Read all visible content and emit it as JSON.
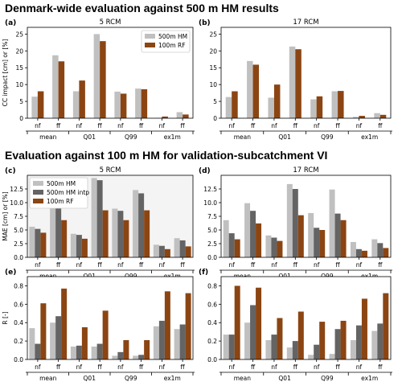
{
  "section_titles": {
    "top": "Denmark-wide evaluation against 500 m HM results",
    "bottom": "Evaluation against 100 m HM for validation-subcatchment VI"
  },
  "colors": {
    "hm500": "#c0c0c0",
    "hm500_intp": "#646464",
    "rf100": "#8b4513",
    "panel_bg_c": "#f4f4f4"
  },
  "chart_data": [
    {
      "panel": "(a)",
      "title": "5 RCM",
      "type": "bar",
      "categories": [
        "nf",
        "ff",
        "nf",
        "ff",
        "nf",
        "ff",
        "nf",
        "ff"
      ],
      "groups": [
        "mean",
        "Q01",
        "Q99",
        "ex1m"
      ],
      "ylabel": "CC impact [cm] or [%]",
      "ylim": [
        0,
        27
      ],
      "yticks": [
        0,
        5,
        10,
        15,
        20,
        25
      ],
      "legend": "top-right",
      "series": [
        {
          "name": "500m HM",
          "color": "#c0c0c0",
          "values": [
            6.4,
            18.7,
            8.0,
            25.0,
            7.9,
            8.8,
            0.1,
            1.8
          ]
        },
        {
          "name": "100m RF",
          "color": "#8b4513",
          "values": [
            8.0,
            16.9,
            11.2,
            22.9,
            7.3,
            8.6,
            0.5,
            1.1
          ]
        }
      ]
    },
    {
      "panel": "(b)",
      "title": "17 RCM",
      "type": "bar",
      "categories": [
        "nf",
        "ff",
        "nf",
        "ff",
        "nf",
        "ff",
        "nf",
        "ff"
      ],
      "groups": [
        "mean",
        "Q01",
        "Q99",
        "ex1m"
      ],
      "ylim": [
        0,
        27
      ],
      "yticks": [
        0,
        5,
        10,
        15,
        20,
        25
      ],
      "series": [
        {
          "name": "500m HM",
          "values": [
            6.3,
            17.0,
            6.1,
            21.3,
            5.6,
            8.0,
            0.4,
            1.5
          ]
        },
        {
          "name": "100m RF",
          "values": [
            8.0,
            15.9,
            10.0,
            20.5,
            6.5,
            8.1,
            0.7,
            1.0
          ]
        }
      ]
    },
    {
      "panel": "(c)",
      "title": "5 RCM",
      "type": "bar",
      "categories": [
        "nf",
        "ff",
        "nf",
        "ff",
        "nf",
        "ff",
        "nf",
        "ff"
      ],
      "groups": [
        "mean",
        "Q01",
        "Q99",
        "ex1m"
      ],
      "ylabel": "MAE [cm] or [%]",
      "ylim": [
        0,
        15
      ],
      "yticks": [
        0.0,
        2.5,
        5.0,
        7.5,
        10.0,
        12.5
      ],
      "legend": "top-left",
      "series": [
        {
          "name": "500m HM",
          "color": "#c0c0c0",
          "values": [
            5.6,
            9.9,
            4.3,
            14.5,
            8.9,
            12.3,
            2.3,
            3.5
          ]
        },
        {
          "name": "500m HM intp",
          "color": "#646464",
          "values": [
            5.2,
            9.9,
            4.1,
            14.1,
            8.5,
            11.7,
            2.1,
            3.1
          ]
        },
        {
          "name": "100m RF",
          "color": "#8b4513",
          "values": [
            4.5,
            6.8,
            3.4,
            8.6,
            6.8,
            8.6,
            1.5,
            2.0
          ]
        }
      ]
    },
    {
      "panel": "(d)",
      "title": "17 RCM",
      "type": "bar",
      "categories": [
        "nf",
        "ff",
        "nf",
        "ff",
        "nf",
        "ff",
        "nf",
        "ff"
      ],
      "groups": [
        "mean",
        "Q01",
        "Q99",
        "ex1m"
      ],
      "ylim": [
        0,
        15
      ],
      "yticks": [
        0.0,
        2.5,
        5.0,
        7.5,
        10.0,
        12.5
      ],
      "series": [
        {
          "name": "500m HM",
          "values": [
            6.8,
            9.9,
            4.0,
            13.4,
            8.1,
            12.4,
            2.8,
            3.3
          ]
        },
        {
          "name": "500m HM intp",
          "values": [
            4.4,
            8.5,
            3.6,
            12.5,
            5.4,
            8.0,
            1.5,
            2.6
          ]
        },
        {
          "name": "100m RF",
          "values": [
            3.3,
            6.2,
            3.0,
            7.7,
            5.0,
            6.8,
            1.2,
            1.7
          ]
        }
      ]
    },
    {
      "panel": "(e)",
      "type": "bar",
      "categories": [
        "nf",
        "ff",
        "nf",
        "ff",
        "nf",
        "ff",
        "nf",
        "ff"
      ],
      "groups": [
        "mean",
        "Q01",
        "Q99",
        "ex1m"
      ],
      "ylabel": "R [-]",
      "ylim": [
        0,
        0.9
      ],
      "yticks": [
        0.0,
        0.2,
        0.4,
        0.6,
        0.8
      ],
      "series": [
        {
          "name": "500m HM",
          "values": [
            0.34,
            0.4,
            0.14,
            0.14,
            0.04,
            0.04,
            0.36,
            0.33
          ]
        },
        {
          "name": "500m HM intp",
          "values": [
            0.17,
            0.47,
            0.15,
            0.17,
            0.08,
            0.05,
            0.42,
            0.38
          ]
        },
        {
          "name": "100m RF",
          "values": [
            0.61,
            0.77,
            0.35,
            0.53,
            0.21,
            0.21,
            0.74,
            0.72
          ]
        }
      ]
    },
    {
      "panel": "(f)",
      "type": "bar",
      "categories": [
        "nf",
        "ff",
        "nf",
        "ff",
        "nf",
        "ff",
        "nf",
        "ff"
      ],
      "groups": [
        "mean",
        "Q01",
        "Q99",
        "ex1m"
      ],
      "ylim": [
        0,
        0.9
      ],
      "yticks": [
        0.0,
        0.2,
        0.4,
        0.6,
        0.8
      ],
      "series": [
        {
          "name": "500m HM",
          "values": [
            0.27,
            0.4,
            0.21,
            0.13,
            0.05,
            0.06,
            0.21,
            0.31
          ]
        },
        {
          "name": "500m HM intp",
          "values": [
            0.27,
            0.59,
            0.27,
            0.2,
            0.16,
            0.33,
            0.37,
            0.39
          ]
        },
        {
          "name": "100m RF",
          "values": [
            0.8,
            0.78,
            0.45,
            0.52,
            0.41,
            0.42,
            0.66,
            0.72
          ]
        }
      ]
    }
  ]
}
